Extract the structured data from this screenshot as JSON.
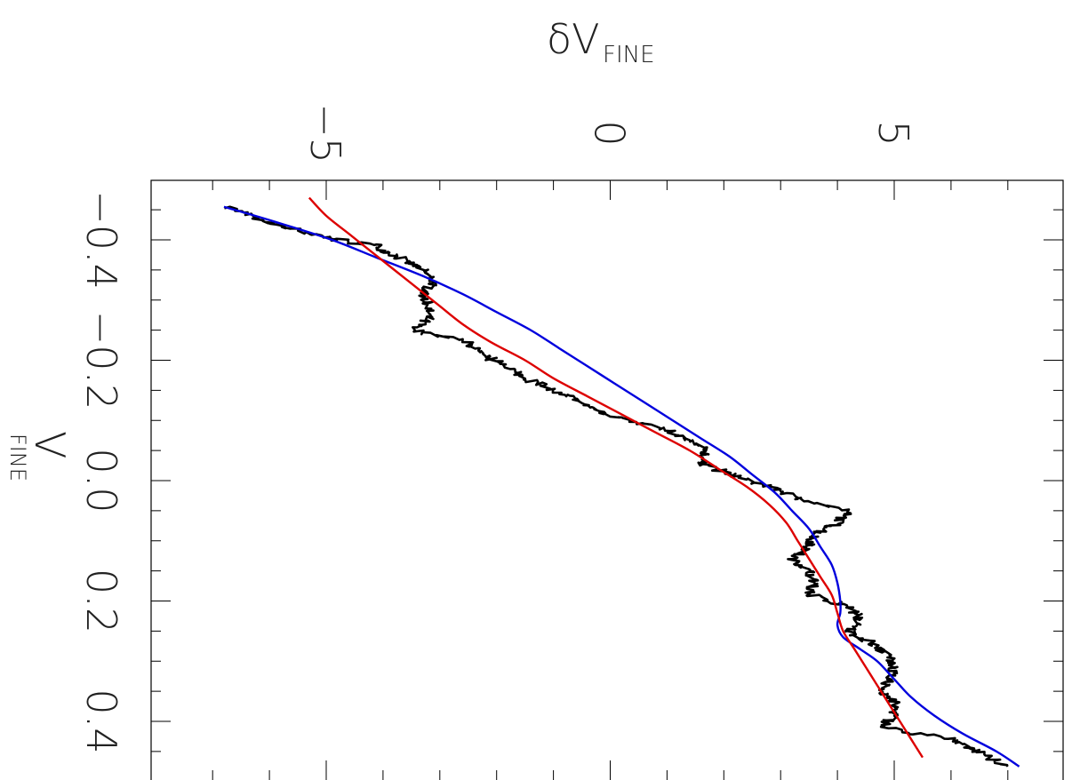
{
  "chart_data": {
    "type": "line",
    "orientation": "rotated-90",
    "x_axis": {
      "label": "V",
      "label_subscript": "FINE",
      "ticks": [
        -0.4,
        -0.2,
        0.0,
        0.2,
        0.4
      ],
      "tick_labels": [
        "−0.4",
        "−0.2",
        "0.0",
        "0.2",
        "0.4"
      ],
      "range": [
        -0.5,
        0.48
      ]
    },
    "y_axis": {
      "label": "δV",
      "label_subscript": "FINE",
      "ticks": [
        -5,
        0,
        5
      ],
      "tick_labels": [
        "−5",
        "0",
        "5"
      ],
      "range": [
        -8,
        8
      ]
    },
    "grid": false,
    "legend": "none",
    "series": [
      {
        "color": "#000000",
        "style": "noisy-step",
        "x": [
          -0.455,
          -0.43,
          -0.41,
          -0.4,
          -0.39,
          -0.37,
          -0.35,
          -0.33,
          -0.31,
          -0.29,
          -0.27,
          -0.25,
          -0.23,
          -0.21,
          -0.19,
          -0.17,
          -0.15,
          -0.13,
          -0.11,
          -0.09,
          -0.07,
          -0.05,
          -0.03,
          -0.01,
          0.01,
          0.03,
          0.05,
          0.07,
          0.09,
          0.11,
          0.13,
          0.15,
          0.17,
          0.19,
          0.21,
          0.23,
          0.25,
          0.27,
          0.29,
          0.31,
          0.33,
          0.35,
          0.37,
          0.39,
          0.41,
          0.43,
          0.45,
          0.475
        ],
        "y": [
          -6.7,
          -6.1,
          -5.3,
          -4.8,
          -4.1,
          -3.7,
          -3.3,
          -3.1,
          -3.3,
          -3.2,
          -3.2,
          -3.5,
          -2.5,
          -2.3,
          -1.8,
          -1.5,
          -1.0,
          -0.5,
          -0.1,
          0.8,
          1.3,
          1.7,
          1.6,
          2.1,
          2.8,
          3.3,
          4.2,
          4.0,
          3.6,
          3.5,
          3.2,
          3.5,
          3.6,
          3.5,
          4.2,
          4.4,
          4.2,
          4.6,
          4.9,
          5.0,
          4.9,
          4.8,
          5.0,
          5.0,
          4.8,
          6.0,
          6.5,
          7.0
        ]
      },
      {
        "color": "#0000dd",
        "style": "smooth",
        "x": [
          -0.455,
          -0.43,
          -0.4,
          -0.37,
          -0.34,
          -0.31,
          -0.28,
          -0.25,
          -0.22,
          -0.19,
          -0.16,
          -0.13,
          -0.1,
          -0.07,
          -0.04,
          -0.01,
          0.02,
          0.05,
          0.08,
          0.11,
          0.14,
          0.17,
          0.2,
          0.22,
          0.24,
          0.26,
          0.28,
          0.3,
          0.33,
          0.36,
          0.39,
          0.42,
          0.45,
          0.475
        ],
        "y": [
          -6.8,
          -5.9,
          -4.9,
          -4.1,
          -3.3,
          -2.6,
          -2.0,
          -1.4,
          -0.9,
          -0.4,
          0.1,
          0.6,
          1.1,
          1.6,
          2.1,
          2.5,
          2.9,
          3.2,
          3.5,
          3.7,
          3.9,
          4.0,
          4.05,
          4.05,
          4.0,
          4.1,
          4.4,
          4.7,
          5.0,
          5.3,
          5.7,
          6.2,
          6.8,
          7.2
        ]
      },
      {
        "color": "#dd0000",
        "style": "smooth",
        "x": [
          -0.47,
          -0.44,
          -0.41,
          -0.38,
          -0.35,
          -0.32,
          -0.29,
          -0.26,
          -0.23,
          -0.2,
          -0.17,
          -0.14,
          -0.11,
          -0.08,
          -0.05,
          -0.02,
          0.01,
          0.04,
          0.07,
          0.1,
          0.13,
          0.16,
          0.19,
          0.22,
          0.25,
          0.28,
          0.31,
          0.34,
          0.37,
          0.4,
          0.43,
          0.46
        ],
        "y": [
          -5.3,
          -5.0,
          -4.6,
          -4.2,
          -3.8,
          -3.4,
          -3.0,
          -2.6,
          -2.1,
          -1.5,
          -1.0,
          -0.4,
          0.2,
          0.8,
          1.4,
          1.9,
          2.4,
          2.8,
          3.1,
          3.3,
          3.5,
          3.7,
          3.9,
          4.0,
          4.1,
          4.3,
          4.5,
          4.7,
          4.9,
          5.1,
          5.3,
          5.5
        ]
      }
    ]
  }
}
